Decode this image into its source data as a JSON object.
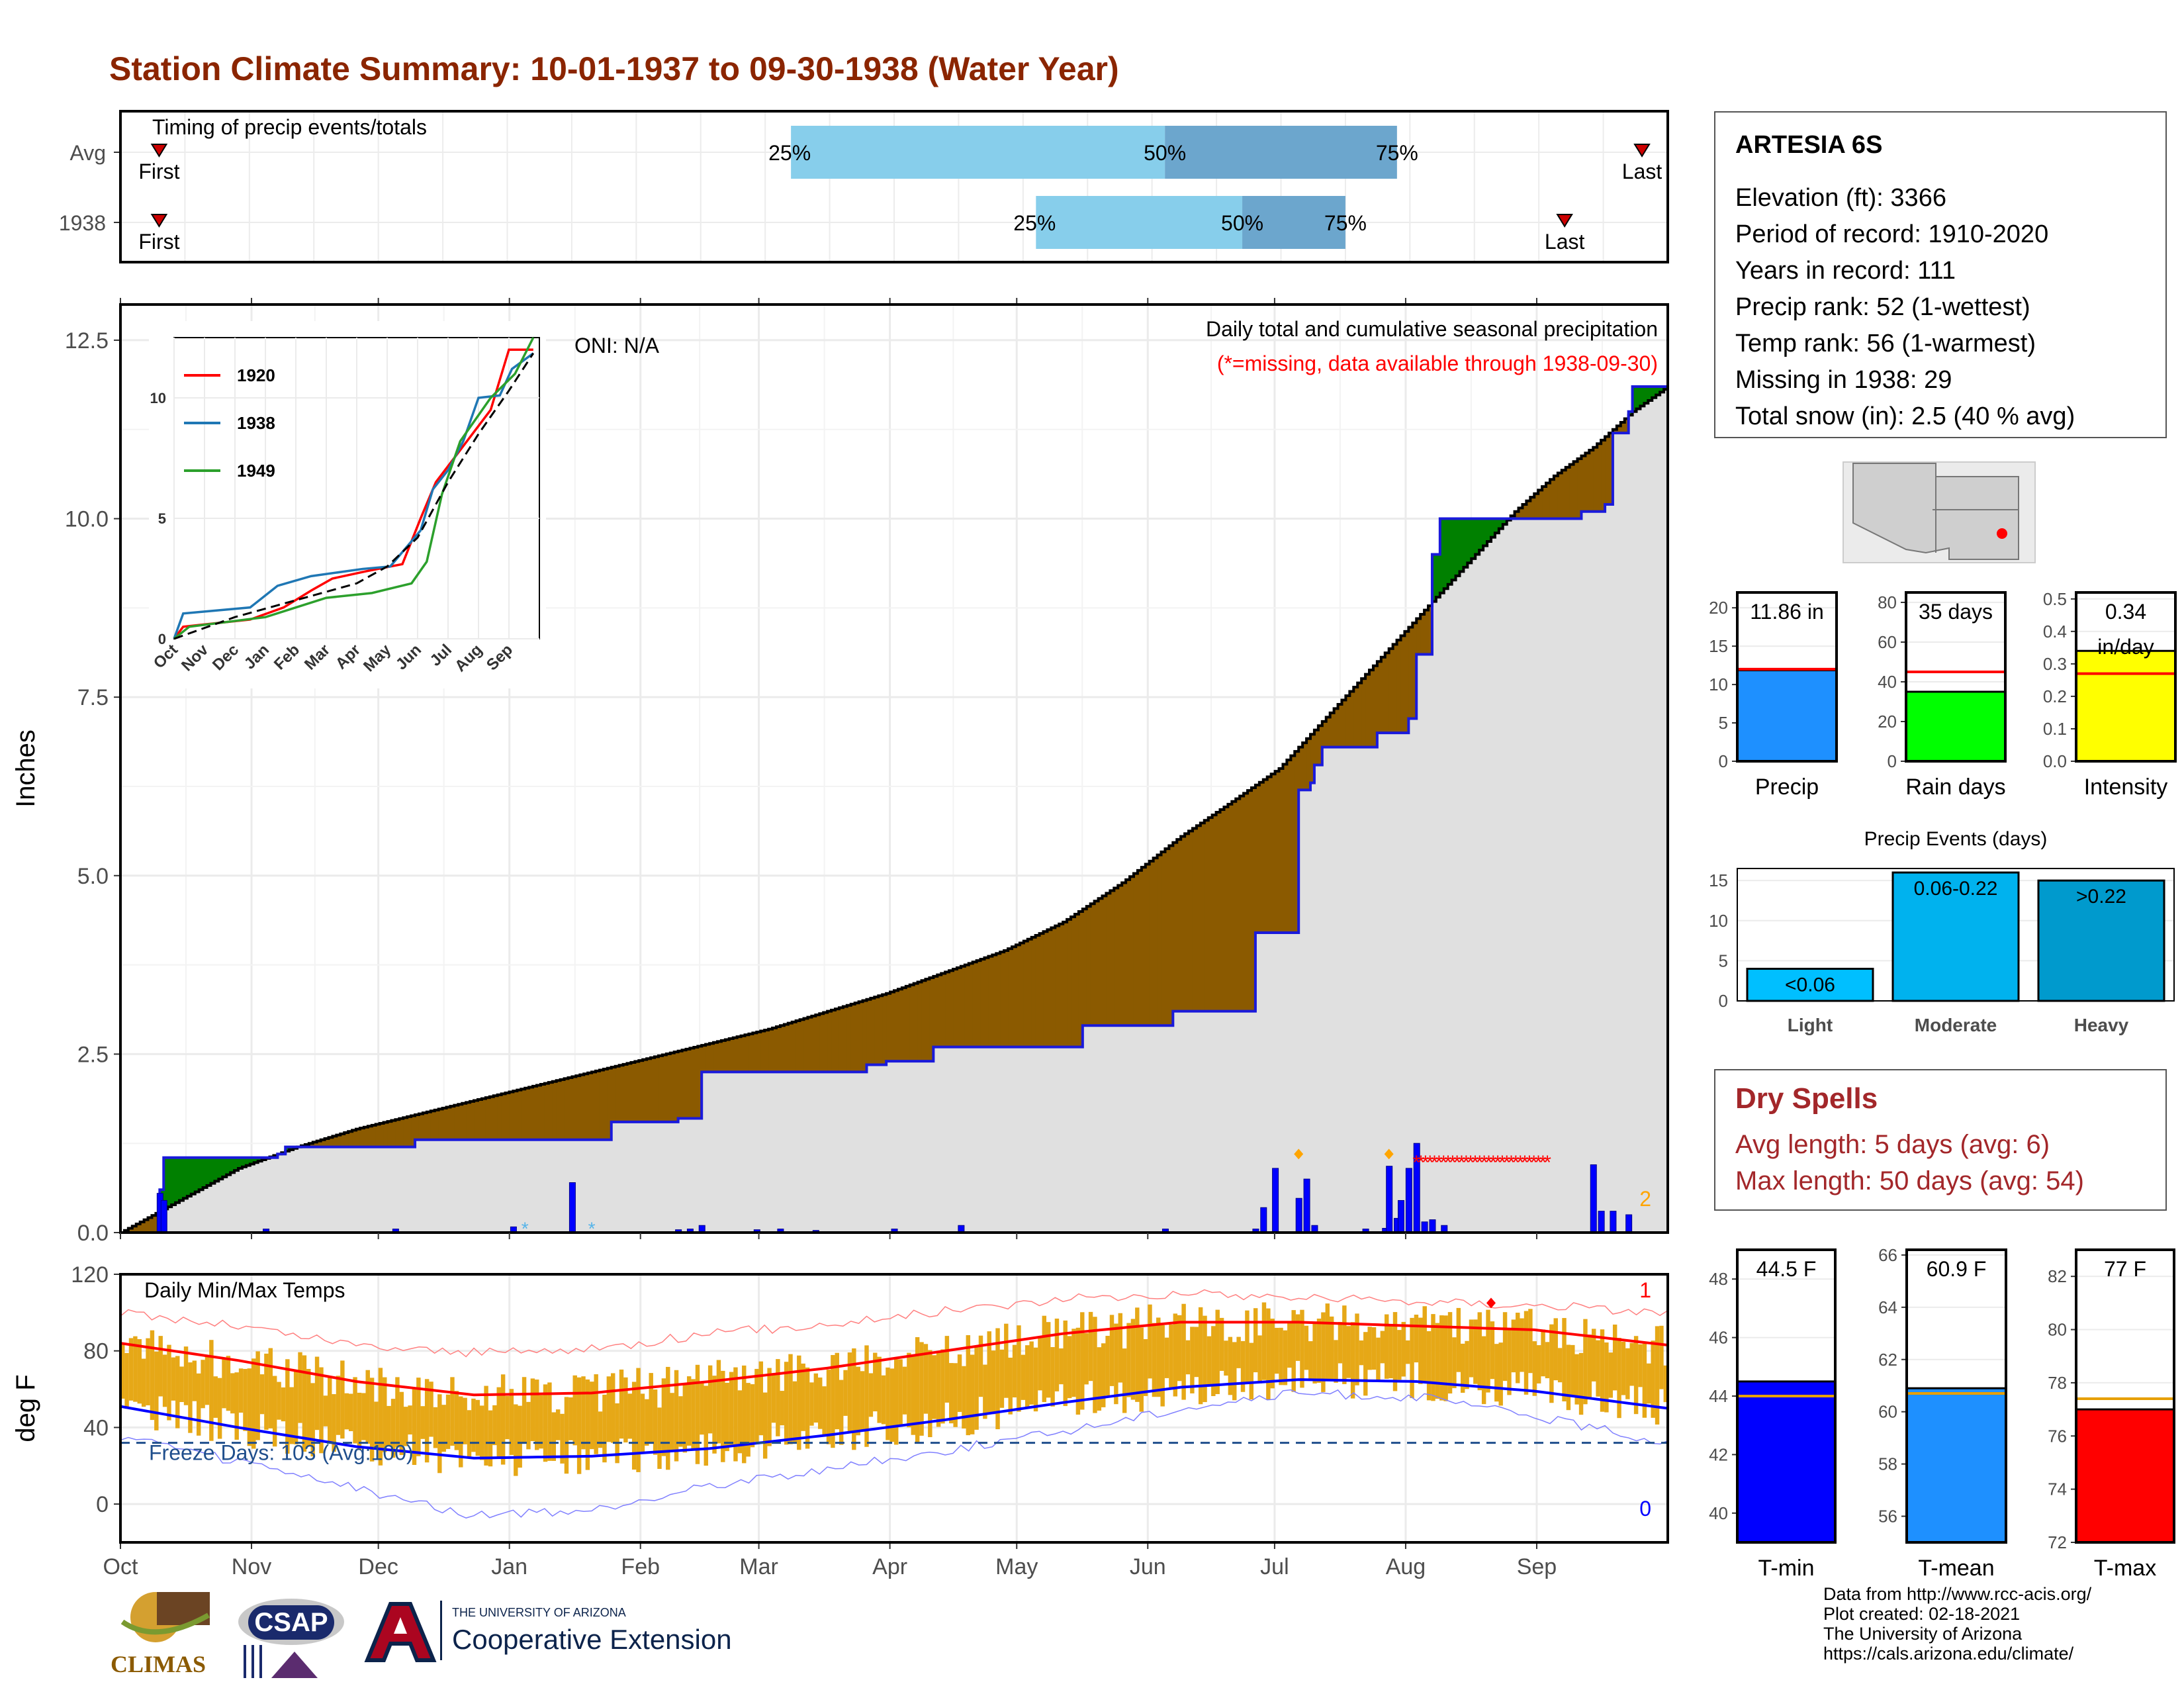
{
  "title": "Station Climate Summary: 10-01-1937 to 09-30-1938 (Water Year)",
  "colors": {
    "title": "#8b2500",
    "quartile_light": "#87ceeb",
    "quartile_dark": "#6ca6cd",
    "cumulative_above": "#008000",
    "cumulative_below": "#8b5a00",
    "fill_avg": "#e0e0e0",
    "tmin": "#0000ff",
    "tmax": "#ff0000",
    "range_bar": "#e6a817"
  },
  "timing": {
    "title": "Timing of precip events/totals",
    "rows": [
      {
        "label": "Avg",
        "first": "First",
        "last": "Last",
        "q25": "25%",
        "q50": "50%",
        "q75": "75%"
      },
      {
        "label": "1938",
        "first": "First",
        "last": "Last",
        "q25": "25%",
        "q50": "50%",
        "q75": "75%"
      }
    ]
  },
  "station": {
    "name": "ARTESIA 6S",
    "lines": [
      "Elevation (ft): 3366",
      "Period of record: 1910-2020",
      "Years in record: 111",
      "Precip rank: 52 (1-wettest)",
      "Temp rank: 56 (1-warmest)",
      "Missing in 1938: 29",
      "Total snow (in): 2.5 (40 % avg)"
    ]
  },
  "dry_spells": {
    "title": "Dry Spells",
    "avg": "Avg length: 5 days (avg: 6)",
    "max": "Max length: 50 days (avg: 54)"
  },
  "credits": [
    "Data from http://www.rcc-acis.org/",
    "Plot created: 02-18-2021",
    "The University of Arizona",
    "https://cals.arizona.edu/climate/"
  ],
  "logos": {
    "climas": "CLIMAS",
    "csap": "CSAP",
    "ua_small": "THE UNIVERSITY OF ARIZONA",
    "ua_big": "Cooperative Extension"
  },
  "chart_data": [
    {
      "type": "bar",
      "name": "timing",
      "rows": [
        "Avg",
        "1938"
      ],
      "note": "horizontal quartile bars positioned by month",
      "avg": {
        "first_month": 0.3,
        "q25_month": 5.2,
        "q50_month": 8.1,
        "q75_month": 9.9,
        "last_month": 11.8
      },
      "y1938": {
        "first_month": 0.3,
        "q25_month": 7.1,
        "q50_month": 8.7,
        "q75_month": 9.5,
        "last_month": 11.2
      }
    },
    {
      "type": "area",
      "name": "cumulative-precip",
      "title": "Daily total and cumulative seasonal precipitation",
      "subtitle": "(*=missing, data available through 1938-09-30)",
      "oni": "ONI: N/A",
      "ylabel": "Inches",
      "ylim": [
        0,
        13
      ],
      "yticks": [
        "0.0",
        "2.5",
        "5.0",
        "7.5",
        "10.0",
        "12.5"
      ],
      "corner_label": "2",
      "months": [
        "Oct",
        "Nov",
        "Dec",
        "Jan",
        "Feb",
        "Mar",
        "Apr",
        "May",
        "Jun",
        "Jul",
        "Aug",
        "Sep"
      ],
      "avg_cumulative": [
        [
          0,
          0
        ],
        [
          10,
          0.3
        ],
        [
          20,
          0.6
        ],
        [
          30,
          0.9
        ],
        [
          45,
          1.2
        ],
        [
          60,
          1.45
        ],
        [
          75,
          1.65
        ],
        [
          90,
          1.85
        ],
        [
          105,
          2.05
        ],
        [
          120,
          2.25
        ],
        [
          135,
          2.45
        ],
        [
          150,
          2.65
        ],
        [
          165,
          2.85
        ],
        [
          180,
          3.1
        ],
        [
          195,
          3.35
        ],
        [
          210,
          3.65
        ],
        [
          225,
          3.95
        ],
        [
          240,
          4.35
        ],
        [
          255,
          4.9
        ],
        [
          270,
          5.55
        ],
        [
          282,
          6.0
        ],
        [
          295,
          6.5
        ],
        [
          305,
          7.1
        ],
        [
          315,
          7.7
        ],
        [
          325,
          8.3
        ],
        [
          335,
          8.9
        ],
        [
          345,
          9.5
        ],
        [
          355,
          10.1
        ],
        [
          365,
          10.6
        ],
        [
          375,
          11.0
        ],
        [
          385,
          11.5
        ],
        [
          394,
          11.85
        ]
      ],
      "year_cumulative": [
        [
          0,
          0
        ],
        [
          10,
          0.6
        ],
        [
          11,
          1.05
        ],
        [
          30,
          1.05
        ],
        [
          40,
          1.1
        ],
        [
          42,
          1.2
        ],
        [
          75,
          1.2
        ],
        [
          75,
          1.3
        ],
        [
          113,
          1.3
        ],
        [
          125,
          1.55
        ],
        [
          142,
          1.55
        ],
        [
          142,
          1.6
        ],
        [
          148,
          1.6
        ],
        [
          148,
          2.25
        ],
        [
          185,
          2.25
        ],
        [
          190,
          2.35
        ],
        [
          195,
          2.4
        ],
        [
          205,
          2.4
        ],
        [
          207,
          2.6
        ],
        [
          245,
          2.6
        ],
        [
          245,
          2.9
        ],
        [
          265,
          2.9
        ],
        [
          268,
          3.1
        ],
        [
          289,
          3.1
        ],
        [
          289,
          4.2
        ],
        [
          300,
          4.2
        ],
        [
          300,
          6.2
        ],
        [
          303,
          6.3
        ],
        [
          304,
          6.55
        ],
        [
          306,
          6.8
        ],
        [
          318,
          6.8
        ],
        [
          320,
          7.0
        ],
        [
          328,
          7.2
        ],
        [
          330,
          8.1
        ],
        [
          332,
          8.1
        ],
        [
          334,
          9.5
        ],
        [
          336,
          10.0
        ],
        [
          370,
          10.0
        ],
        [
          372,
          10.1
        ],
        [
          378,
          10.2
        ],
        [
          380,
          11.2
        ],
        [
          384,
          11.5
        ],
        [
          385,
          11.85
        ],
        [
          394,
          11.85
        ]
      ],
      "daily_precip": [
        [
          10,
          0.55
        ],
        [
          11,
          0.45
        ],
        [
          37,
          0.05
        ],
        [
          70,
          0.05
        ],
        [
          100,
          0.08
        ],
        [
          115,
          0.7
        ],
        [
          142,
          0.04
        ],
        [
          145,
          0.05
        ],
        [
          148,
          0.1
        ],
        [
          162,
          0.04
        ],
        [
          168,
          0.05
        ],
        [
          177,
          0.03
        ],
        [
          197,
          0.05
        ],
        [
          214,
          0.1
        ],
        [
          266,
          0.05
        ],
        [
          289,
          0.05
        ],
        [
          291,
          0.35
        ],
        [
          294,
          0.9
        ],
        [
          300,
          0.48
        ],
        [
          302,
          0.75
        ],
        [
          304,
          0.1
        ],
        [
          317,
          0.05
        ],
        [
          322,
          0.06
        ],
        [
          323,
          0.93
        ],
        [
          325,
          0.2
        ],
        [
          326,
          0.45
        ],
        [
          328,
          0.9
        ],
        [
          330,
          1.25
        ],
        [
          332,
          0.15
        ],
        [
          334,
          0.18
        ],
        [
          337,
          0.1
        ],
        [
          375,
          0.95
        ],
        [
          377,
          0.3
        ],
        [
          380,
          0.3
        ],
        [
          384,
          0.25
        ]
      ],
      "missing_span": [
        [
          330,
          1.0
        ],
        [
          364,
          1.0
        ]
      ]
    },
    {
      "type": "line",
      "name": "inset-cumulative",
      "ylim": [
        0,
        12.5
      ],
      "yticks": [
        "0",
        "5",
        "10"
      ],
      "months": [
        "Oct",
        "Nov",
        "Dec",
        "Jan",
        "Feb",
        "Mar",
        "Apr",
        "May",
        "Jun",
        "Jul",
        "Aug",
        "Sep"
      ],
      "series": [
        {
          "name": "1920",
          "color": "#ff0000",
          "points": [
            [
              0,
              0
            ],
            [
              0.3,
              0.5
            ],
            [
              2.5,
              0.8
            ],
            [
              3.6,
              1.3
            ],
            [
              4.5,
              2.0
            ],
            [
              5.2,
              2.5
            ],
            [
              6.3,
              2.8
            ],
            [
              7.5,
              3.1
            ],
            [
              8.1,
              5.0
            ],
            [
              8.6,
              6.5
            ],
            [
              9.5,
              8.0
            ],
            [
              10.4,
              9.5
            ],
            [
              11.0,
              12.0
            ],
            [
              11.8,
              12.0
            ]
          ]
        },
        {
          "name": "1938",
          "color": "#1f77b4",
          "points": [
            [
              0,
              0
            ],
            [
              0.3,
              1.05
            ],
            [
              2.5,
              1.3
            ],
            [
              3.4,
              2.2
            ],
            [
              4.5,
              2.6
            ],
            [
              6.2,
              2.9
            ],
            [
              7.1,
              3.0
            ],
            [
              8.1,
              4.5
            ],
            [
              8.5,
              6.2
            ],
            [
              9.0,
              7.0
            ],
            [
              9.5,
              8.2
            ],
            [
              10.0,
              10.0
            ],
            [
              10.7,
              10.1
            ],
            [
              11.1,
              11.2
            ],
            [
              11.8,
              11.85
            ]
          ]
        },
        {
          "name": "1949",
          "color": "#2ca02c",
          "points": [
            [
              0,
              0
            ],
            [
              0.5,
              0.5
            ],
            [
              3.0,
              0.9
            ],
            [
              4.0,
              1.3
            ],
            [
              5.0,
              1.7
            ],
            [
              6.5,
              1.9
            ],
            [
              7.8,
              2.3
            ],
            [
              8.3,
              3.2
            ],
            [
              8.8,
              6.0
            ],
            [
              9.4,
              8.2
            ],
            [
              10.4,
              10.0
            ],
            [
              11.2,
              11.0
            ],
            [
              11.8,
              12.5
            ]
          ]
        },
        {
          "name": "",
          "color": "#000000",
          "dashed": true,
          "points": [
            [
              0,
              0
            ],
            [
              2,
              0.9
            ],
            [
              4,
              1.6
            ],
            [
              6,
              2.3
            ],
            [
              7,
              3.0
            ],
            [
              8,
              4.2
            ],
            [
              9,
              6.5
            ],
            [
              10,
              8.5
            ],
            [
              11,
              10.3
            ],
            [
              11.8,
              11.85
            ]
          ]
        }
      ]
    },
    {
      "type": "line",
      "name": "daily-temps",
      "title": "Daily Min/Max Temps",
      "ylabel": "deg F",
      "ylim": [
        -20,
        120
      ],
      "yticks": [
        "0",
        "40",
        "80",
        "120"
      ],
      "freeze_label": "Freeze Days: 103 (Avg:100)",
      "freeze_line": 32,
      "record_high_count": "1",
      "record_low_count": "0",
      "months": [
        "Oct",
        "Nov",
        "Dec",
        "Jan",
        "Feb",
        "Mar",
        "Apr",
        "May",
        "Jun",
        "Jul",
        "Aug",
        "Sep"
      ],
      "avg_max": [
        [
          0,
          84
        ],
        [
          30,
          75
        ],
        [
          60,
          64
        ],
        [
          90,
          57
        ],
        [
          120,
          58
        ],
        [
          150,
          64
        ],
        [
          180,
          71
        ],
        [
          210,
          80
        ],
        [
          240,
          89
        ],
        [
          270,
          95
        ],
        [
          300,
          95
        ],
        [
          330,
          93
        ],
        [
          360,
          91
        ],
        [
          394,
          83
        ]
      ],
      "avg_min": [
        [
          0,
          51
        ],
        [
          30,
          40
        ],
        [
          60,
          30
        ],
        [
          90,
          24
        ],
        [
          120,
          25
        ],
        [
          150,
          29
        ],
        [
          180,
          36
        ],
        [
          210,
          44
        ],
        [
          240,
          53
        ],
        [
          270,
          61
        ],
        [
          300,
          65
        ],
        [
          330,
          64
        ],
        [
          360,
          59
        ],
        [
          394,
          50
        ]
      ],
      "rec_max": [
        [
          0,
          100
        ],
        [
          30,
          93
        ],
        [
          60,
          83
        ],
        [
          90,
          79
        ],
        [
          120,
          81
        ],
        [
          150,
          89
        ],
        [
          180,
          94
        ],
        [
          210,
          101
        ],
        [
          240,
          107
        ],
        [
          270,
          110
        ],
        [
          300,
          108
        ],
        [
          330,
          106
        ],
        [
          360,
          104
        ],
        [
          394,
          100
        ]
      ],
      "rec_min": [
        [
          0,
          35
        ],
        [
          30,
          22
        ],
        [
          60,
          8
        ],
        [
          90,
          -6
        ],
        [
          120,
          -4
        ],
        [
          150,
          10
        ],
        [
          180,
          18
        ],
        [
          210,
          28
        ],
        [
          240,
          38
        ],
        [
          270,
          50
        ],
        [
          300,
          58
        ],
        [
          330,
          56
        ],
        [
          360,
          46
        ],
        [
          394,
          32
        ]
      ]
    },
    {
      "type": "bar",
      "name": "precip-total",
      "categories": [
        "Precip"
      ],
      "values": [
        11.86
      ],
      "avg": 12.0,
      "ylim": [
        0,
        22
      ],
      "yticks": [
        "0",
        "5",
        "10",
        "15",
        "20"
      ],
      "label": "11.86 in",
      "color": "#1e90ff"
    },
    {
      "type": "bar",
      "name": "rain-days",
      "categories": [
        "Rain days"
      ],
      "values": [
        35
      ],
      "avg": 45,
      "ylim": [
        0,
        85
      ],
      "yticks": [
        "0",
        "20",
        "40",
        "60",
        "80"
      ],
      "label": "35 days",
      "color": "#00ff00"
    },
    {
      "type": "bar",
      "name": "intensity",
      "categories": [
        "Intensity"
      ],
      "values": [
        0.34
      ],
      "avg": 0.27,
      "ylim": [
        0,
        0.52
      ],
      "yticks": [
        "0.0",
        "0.1",
        "0.2",
        "0.3",
        "0.4",
        "0.5"
      ],
      "label": "0.34",
      "label2": "in/day",
      "color": "#ffff00"
    },
    {
      "type": "bar",
      "name": "precip-events",
      "title": "Precip Events (days)",
      "categories": [
        "Light",
        "Moderate",
        "Heavy"
      ],
      "values": [
        4,
        16,
        15
      ],
      "labels": [
        "<0.06",
        "0.06-0.22",
        ">0.22"
      ],
      "ylim": [
        0,
        16.5
      ],
      "yticks": [
        "0",
        "5",
        "10",
        "15"
      ],
      "colors": [
        "#00bfff",
        "#00b2ee",
        "#009acd"
      ]
    },
    {
      "type": "bar",
      "name": "t-min",
      "categories": [
        "T-min"
      ],
      "values": [
        44.5
      ],
      "avg": 44.0,
      "ylim": [
        39,
        49
      ],
      "yticks": [
        "40",
        "42",
        "44",
        "46",
        "48"
      ],
      "label": "44.5 F",
      "color": "#0000ff"
    },
    {
      "type": "bar",
      "name": "t-mean",
      "categories": [
        "T-mean"
      ],
      "values": [
        60.9
      ],
      "avg": 60.7,
      "ylim": [
        55,
        66.2
      ],
      "yticks": [
        "56",
        "58",
        "60",
        "62",
        "64",
        "66"
      ],
      "label": "60.9 F",
      "color": "#1e90ff"
    },
    {
      "type": "bar",
      "name": "t-max",
      "categories": [
        "T-max"
      ],
      "values": [
        77
      ],
      "avg": 77.4,
      "ylim": [
        72,
        83
      ],
      "yticks": [
        "72",
        "74",
        "76",
        "78",
        "80",
        "82"
      ],
      "label": "77 F",
      "color": "#ff0000"
    }
  ]
}
